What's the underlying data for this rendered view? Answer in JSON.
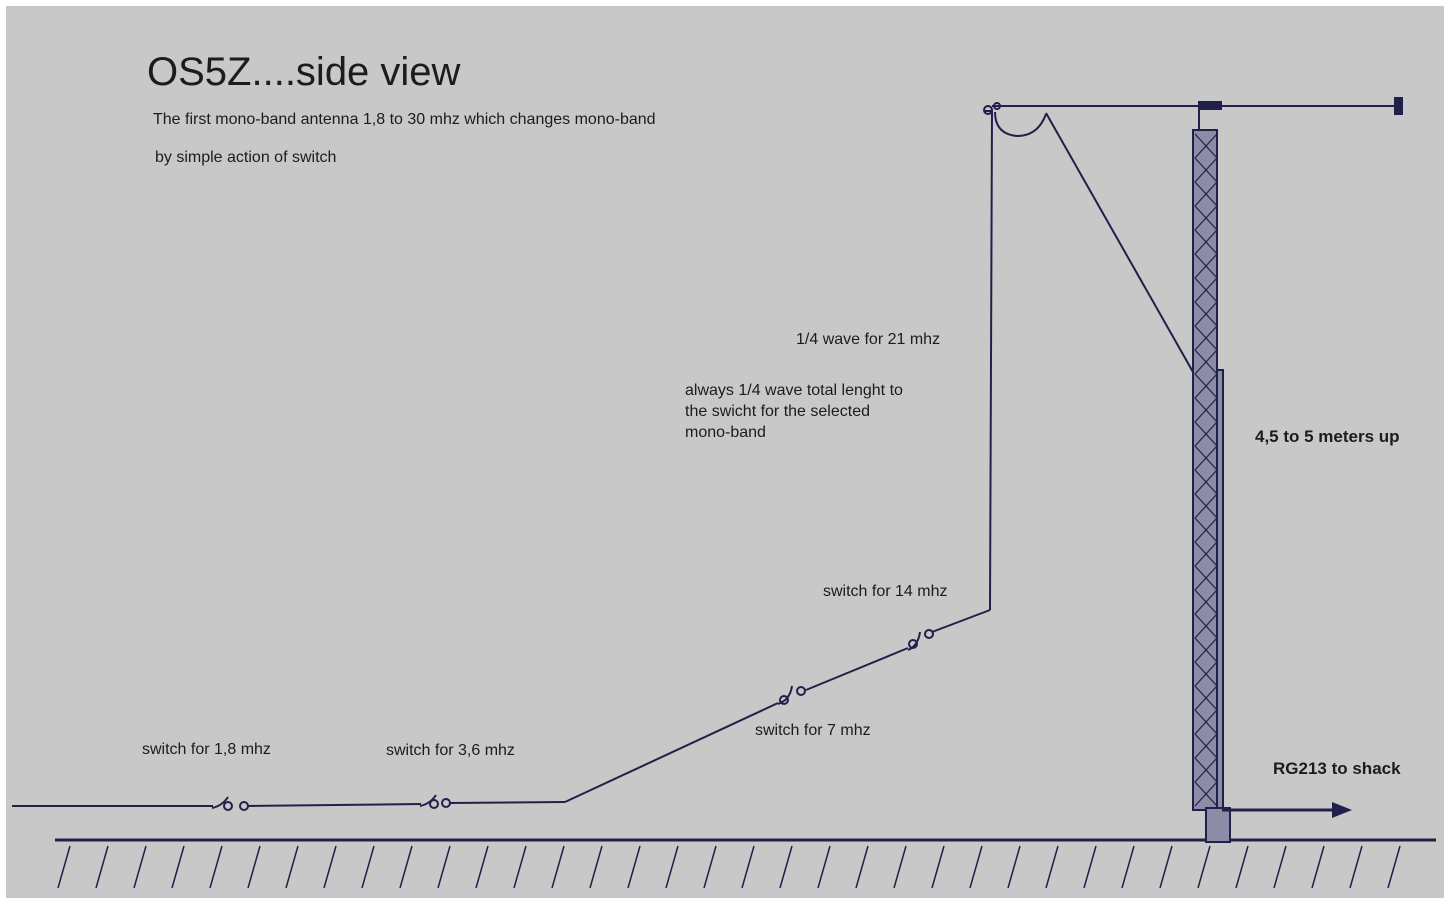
{
  "title": "OS5Z....side view",
  "subtitle": {
    "line1": "The first mono-band antenna 1,8 to 30 mhz which changes mono-band",
    "line2": "by simple action of switch"
  },
  "labels": {
    "quarter_wave_21": "1/4 wave for 21 mhz",
    "always_note": {
      "line1": "always 1/4 wave total lenght to",
      "line2": "the swicht for the selected",
      "line3": "mono-band"
    },
    "height": "4,5 to 5 meters up",
    "feedline": "RG213 to shack"
  },
  "switches": [
    {
      "label": "switch for 1,8 mhz"
    },
    {
      "label": "switch for 3,6 mhz"
    },
    {
      "label": "switch for 7 mhz"
    },
    {
      "label": "switch for 14 mhz"
    }
  ],
  "colors": {
    "background": "#c8c8c8",
    "ink": "#20204a",
    "mast_fill": "#8c8ca6",
    "text": "#1c1c1c"
  }
}
